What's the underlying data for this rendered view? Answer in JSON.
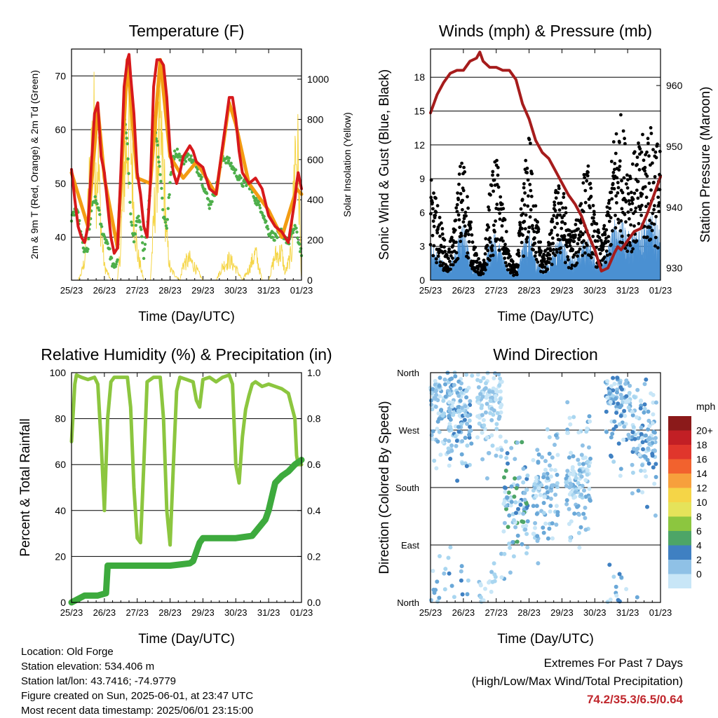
{
  "info": {
    "location": "Location: Old Forge",
    "elevation": "Station elevation: 534.406 m",
    "latlon": "Station lat/lon: 43.7416; -74.9779",
    "created": "Figure created on Sun, 2025-06-01, at 23:47 UTC",
    "recent": "Most recent data timestamp: 2025/06/01 23:15:00"
  },
  "extremes": {
    "title": "Extremes For Past 7 Days",
    "subtitle": "(High/Low/Max Wind/Total Precipitation)",
    "values": "74.2/35.3/6.5/0.64"
  },
  "colors": {
    "temp_2m": "#d7191c",
    "temp_9m": "#f39c12",
    "dewpoint": "#4daf4a",
    "solar": "#f5d547",
    "wind": "#4a90d2",
    "gust": "#000000",
    "pressure": "#a61c1c",
    "rh": "#8cc63f",
    "precip": "#3daa3d"
  },
  "chart_data": [
    {
      "type": "line",
      "title": "Temperature (F)",
      "xlabel": "Time (Day/UTC)",
      "ylabel": "2m & 9m T (Red, Orange) & 2m Td (Green)",
      "ylabel_right": "Solar Insolation (Yellow)",
      "x_ticks": [
        "25/23",
        "26/23",
        "27/23",
        "28/23",
        "29/23",
        "30/23",
        "31/23",
        "01/23"
      ],
      "xlim": [
        0,
        7
      ],
      "ylim": [
        32,
        75
      ],
      "y_ticks": [
        40,
        50,
        60,
        70
      ],
      "ylim_right": [
        0,
        1150
      ],
      "y_ticks_right": [
        0,
        200,
        400,
        600,
        800,
        1000
      ],
      "grid": true,
      "series": [
        {
          "x": [
            0,
            0.1,
            0.2,
            0.3,
            0.4,
            0.5,
            0.6,
            0.7,
            0.8,
            0.85,
            0.9,
            1.0,
            1.1,
            1.2,
            1.3,
            1.4,
            1.5,
            1.6,
            1.7,
            1.75,
            1.8,
            1.9,
            2.0,
            2.1,
            2.2,
            2.3,
            2.4,
            2.5,
            2.6,
            2.7,
            2.8,
            2.9,
            3.0,
            3.1,
            3.2,
            3.3,
            3.4,
            3.5,
            3.6,
            3.7,
            3.8,
            4.0,
            4.2,
            4.4,
            4.6,
            4.8,
            4.9,
            5.0,
            5.1,
            5.2,
            5.4,
            5.6,
            5.8,
            6.0,
            6.2,
            6.4,
            6.6,
            6.8,
            6.85,
            6.9,
            7.0
          ],
          "values": [
            52.6,
            47,
            42,
            40,
            39,
            42,
            53,
            63,
            65,
            60,
            55,
            52,
            46,
            40,
            37,
            38,
            52,
            68,
            73,
            74,
            70,
            63,
            52,
            48,
            42,
            40,
            50,
            68,
            73,
            73,
            72,
            66,
            56,
            52,
            50,
            52,
            55,
            56,
            57,
            56,
            54,
            53,
            49,
            48,
            57,
            66,
            66,
            62,
            56,
            52,
            50,
            51,
            49,
            44,
            42,
            41,
            39,
            47,
            50,
            52,
            49
          ]
        },
        {
          "x": [
            0,
            0.5,
            0.8,
            1.0,
            1.4,
            1.7,
            2.0,
            2.4,
            2.7,
            3.0,
            3.4,
            3.8,
            4.4,
            4.8,
            5.0,
            5.4,
            6.0,
            6.4,
            6.85,
            7.0
          ],
          "values": [
            52,
            42,
            64,
            51,
            38,
            73,
            51,
            50,
            73,
            55,
            51,
            54,
            48,
            65,
            61,
            50,
            45,
            40,
            49,
            48
          ]
        },
        {
          "x": [
            0,
            0.1,
            0.2,
            0.3,
            0.4,
            0.5,
            0.6,
            0.7,
            0.8,
            0.9,
            1.0,
            1.1,
            1.2,
            1.3,
            1.4,
            1.5,
            1.6,
            1.7,
            1.8,
            1.9,
            2.0,
            2.1,
            2.2,
            2.3,
            2.4,
            2.5,
            2.6,
            2.7,
            2.8,
            2.9,
            3.0,
            3.1,
            3.2,
            3.3,
            3.4,
            3.5,
            3.6,
            3.7,
            3.8,
            3.9,
            4.0,
            4.2,
            4.4,
            4.6,
            4.8,
            5.0,
            5.2,
            5.4,
            5.6,
            5.8,
            6.0,
            6.2,
            6.4,
            6.6,
            6.8,
            7.0
          ],
          "values": [
            43,
            45,
            44,
            40,
            37,
            38,
            45,
            47,
            46,
            42,
            40,
            39,
            36,
            34,
            36,
            50,
            62,
            58,
            44,
            39,
            44,
            42,
            36,
            42,
            50,
            62,
            58,
            52,
            44,
            42,
            50,
            55,
            56,
            55,
            54,
            55,
            55,
            54,
            53,
            52,
            50,
            46,
            49,
            55,
            54,
            52,
            50,
            50,
            47,
            45,
            41,
            40,
            41,
            39,
            42,
            37
          ]
        },
        {
          "x": [
            0,
            0.2,
            0.3,
            0.4,
            0.5,
            0.6,
            0.7,
            0.75,
            0.8,
            0.9,
            1.0,
            1.2,
            1.4,
            1.5,
            1.6,
            1.7,
            1.8,
            1.9,
            2.0,
            2.2,
            2.4,
            2.5,
            2.6,
            2.7,
            2.8,
            2.9,
            3.0,
            3.3,
            3.4,
            3.6,
            3.8,
            4.0,
            4.4,
            4.6,
            4.8,
            5.0,
            5.2,
            5.4,
            5.6,
            5.8,
            6.0,
            6.2,
            6.4,
            6.5,
            6.7,
            6.8,
            6.9,
            7.0
          ],
          "values": [
            0,
            0,
            50,
            150,
            500,
            950,
            1100,
            700,
            900,
            400,
            100,
            0,
            0,
            250,
            800,
            1050,
            1100,
            500,
            200,
            0,
            0,
            400,
            900,
            1000,
            800,
            300,
            80,
            0,
            120,
            150,
            80,
            0,
            0,
            100,
            150,
            90,
            0,
            80,
            200,
            0,
            0,
            180,
            200,
            50,
            200,
            950,
            850,
            0
          ]
        }
      ],
      "series_names": [
        "2m T",
        "9m T",
        "2m Td",
        "Solar"
      ]
    },
    {
      "type": "scatter",
      "title": "Winds (mph) & Pressure (mb)",
      "xlabel": "Time (Day/UTC)",
      "ylabel": "Sonic Wind & Gust (Blue, Black)",
      "ylabel_right": "Station Pressure (Maroon)",
      "x_ticks": [
        "25/23",
        "26/23",
        "27/23",
        "28/23",
        "29/23",
        "30/23",
        "31/23",
        "01/23"
      ],
      "xlim": [
        0,
        7
      ],
      "ylim": [
        0,
        20.5
      ],
      "y_ticks": [
        0,
        3,
        6,
        9,
        12,
        15,
        18
      ],
      "ylim_right": [
        928,
        966
      ],
      "y_ticks_right": [
        930,
        940,
        950,
        960
      ],
      "grid": true,
      "pressure": {
        "x": [
          0,
          0.2,
          0.4,
          0.6,
          0.8,
          1.0,
          1.2,
          1.4,
          1.5,
          1.6,
          1.8,
          2.0,
          2.2,
          2.4,
          2.6,
          2.8,
          3.0,
          3.2,
          3.4,
          3.6,
          3.8,
          4.0,
          4.2,
          4.4,
          4.6,
          4.8,
          5.0,
          5.2,
          5.4,
          5.6,
          5.7,
          5.8,
          6.0,
          6.2,
          6.4,
          6.6,
          6.8,
          7.0
        ],
        "values": [
          955.5,
          958.5,
          960.5,
          962,
          962.5,
          962.5,
          964,
          964.5,
          965.5,
          964,
          963,
          963,
          962.5,
          962.5,
          961,
          957,
          954.5,
          951,
          949,
          948,
          946,
          944,
          942,
          940.5,
          938.5,
          935.5,
          933,
          929.5,
          930,
          932.5,
          933.5,
          933,
          934.5,
          936,
          936.5,
          939,
          942,
          945
        ]
      },
      "wind_profile": {
        "x": [
          0,
          0.3,
          0.5,
          0.7,
          0.9,
          1.0,
          1.2,
          1.4,
          1.6,
          1.8,
          2.0,
          2.2,
          2.4,
          2.6,
          2.8,
          3.0,
          3.2,
          3.4,
          3.6,
          3.8,
          4.0,
          4.2,
          4.4,
          4.6,
          4.8,
          5.0,
          5.2,
          5.4,
          5.6,
          5.8,
          6.0,
          6.2,
          6.4,
          6.6,
          6.8,
          7.0
        ],
        "values": [
          3,
          2,
          1,
          2,
          4,
          5,
          2,
          1,
          0.5,
          3.5,
          4,
          2,
          1,
          0.5,
          3,
          4,
          2,
          1,
          1.5,
          3,
          3.5,
          2,
          2,
          3,
          3.5,
          2,
          1.5,
          3,
          5,
          5,
          4,
          4,
          5,
          5,
          5.5,
          4
        ]
      },
      "gust_profile": {
        "x": [
          0,
          0.3,
          0.5,
          0.7,
          0.9,
          1.0,
          1.2,
          1.4,
          1.6,
          1.8,
          2.0,
          2.2,
          2.4,
          2.6,
          2.8,
          3.0,
          3.2,
          3.4,
          3.6,
          3.8,
          4.0,
          4.2,
          4.4,
          4.6,
          4.8,
          5.0,
          5.2,
          5.4,
          5.6,
          5.8,
          6.0,
          6.2,
          6.4,
          6.6,
          6.8,
          7.0
        ],
        "values": [
          8,
          5,
          2,
          4,
          9,
          10,
          5,
          2,
          1,
          7,
          10,
          6,
          2,
          1,
          7,
          12,
          6,
          2,
          3,
          7,
          8,
          4,
          4,
          8,
          9,
          5,
          3,
          6,
          12,
          13,
          10,
          10,
          11,
          12,
          12,
          10
        ]
      }
    },
    {
      "type": "line",
      "title": "Relative Humidity (%) & Precipitation (in)",
      "xlabel": "Time (Day/UTC)",
      "ylabel": "Percent & Total Rainfall",
      "x_ticks": [
        "25/23",
        "26/23",
        "27/23",
        "28/23",
        "29/23",
        "30/23",
        "31/23",
        "01/23"
      ],
      "xlim": [
        0,
        7
      ],
      "ylim": [
        0,
        100
      ],
      "y_ticks": [
        0,
        20,
        40,
        60,
        80,
        100
      ],
      "ylim_right": [
        0,
        1.0
      ],
      "y_ticks_right": [
        0.0,
        0.2,
        0.4,
        0.6,
        0.8,
        1.0
      ],
      "grid": true,
      "series": [
        {
          "x": [
            0,
            0.1,
            0.15,
            0.3,
            0.5,
            0.7,
            0.8,
            0.9,
            1.0,
            1.1,
            1.2,
            1.3,
            1.5,
            1.7,
            1.8,
            1.9,
            2.0,
            2.1,
            2.2,
            2.3,
            2.5,
            2.7,
            2.8,
            2.9,
            3.0,
            3.1,
            3.2,
            3.3,
            3.5,
            3.7,
            3.8,
            3.9,
            4.0,
            4.2,
            4.4,
            4.6,
            4.8,
            4.9,
            5.0,
            5.1,
            5.2,
            5.3,
            5.4,
            5.5,
            5.6,
            5.8,
            6.0,
            6.2,
            6.4,
            6.6,
            6.8,
            6.85,
            6.9,
            7.0
          ],
          "values": [
            70,
            95,
            99,
            98,
            97,
            98,
            95,
            70,
            40,
            80,
            96,
            98,
            98,
            98,
            85,
            50,
            28,
            26,
            60,
            96,
            98,
            98,
            80,
            40,
            25,
            60,
            92,
            98,
            97,
            96,
            88,
            85,
            97,
            98,
            96,
            98,
            99,
            95,
            60,
            52,
            72,
            84,
            90,
            95,
            96,
            94,
            95,
            94,
            93,
            91,
            80,
            64,
            60,
            60
          ]
        },
        {
          "x": [
            0,
            0.4,
            0.8,
            1.05,
            1.1,
            2.0,
            3.0,
            3.6,
            3.7,
            3.8,
            3.9,
            4.0,
            4.5,
            5.0,
            5.5,
            5.9,
            6.0,
            6.1,
            6.2,
            6.4,
            6.6,
            6.8,
            7.0
          ],
          "values": [
            0.0,
            0.03,
            0.03,
            0.04,
            0.16,
            0.16,
            0.16,
            0.17,
            0.18,
            0.22,
            0.26,
            0.28,
            0.28,
            0.28,
            0.29,
            0.36,
            0.4,
            0.46,
            0.52,
            0.55,
            0.57,
            0.6,
            0.62
          ]
        }
      ],
      "series_names": [
        "Relative Humidity",
        "Total Precipitation"
      ]
    },
    {
      "type": "scatter",
      "title": "Wind Direction",
      "xlabel": "Time (Day/UTC)",
      "ylabel": "Direction (Colored By Speed)",
      "x_ticks": [
        "25/23",
        "26/23",
        "27/23",
        "28/23",
        "29/23",
        "30/23",
        "31/23",
        "01/23"
      ],
      "xlim": [
        0,
        7
      ],
      "y_ticks": [
        "North",
        "East",
        "South",
        "West",
        "North"
      ],
      "y_tick_values": [
        0,
        90,
        180,
        270,
        360
      ],
      "ylim": [
        0,
        360
      ],
      "grid": true,
      "legend": {
        "title": "mph",
        "labels": [
          "20+",
          "18",
          "16",
          "14",
          "12",
          "10",
          "8",
          "6",
          "4",
          "2",
          "0"
        ],
        "colors": [
          "#8b1a1a",
          "#c21f25",
          "#e0362c",
          "#f2622e",
          "#f7a03c",
          "#f5d547",
          "#e5e35a",
          "#8cc63f",
          "#4da567",
          "#3f80c2",
          "#8fc1e6",
          "#c8e6f7"
        ]
      },
      "clusters": [
        {
          "x": 0.3,
          "dir": 330,
          "speed": 3
        },
        {
          "x": 0.9,
          "dir": 300,
          "speed": 4
        },
        {
          "x": 1.8,
          "dir": 320,
          "speed": 2
        },
        {
          "x": 2.6,
          "dir": 160,
          "speed": 5
        },
        {
          "x": 3.5,
          "dir": 180,
          "speed": 3
        },
        {
          "x": 4.5,
          "dir": 200,
          "speed": 3
        },
        {
          "x": 5.7,
          "dir": 320,
          "speed": 4
        },
        {
          "x": 6.5,
          "dir": 255,
          "speed": 4
        }
      ]
    }
  ]
}
